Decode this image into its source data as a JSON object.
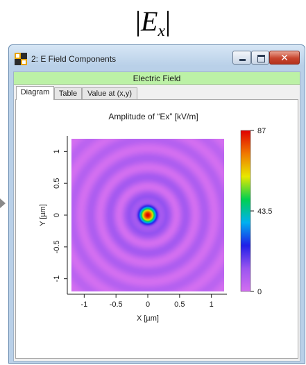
{
  "heading": {
    "symbol": "E",
    "subscript": "x"
  },
  "window": {
    "title": "2: E Field Components",
    "icon": "grid-app-icon",
    "controls": {
      "minimize": "minimize-icon",
      "maximize": "maximize-icon",
      "close": "close-icon"
    }
  },
  "header_band": {
    "label": "Electric Field",
    "color": "#bcf1a6"
  },
  "tabs": [
    {
      "label": "Diagram",
      "active": true
    },
    {
      "label": "Table",
      "active": false
    },
    {
      "label": "Value at (x,y)",
      "active": false
    }
  ],
  "chart_data": {
    "type": "heatmap",
    "title": "Amplitude of “Ex”  [kV/m]",
    "xlabel": "X [µm]",
    "ylabel": "Y [µm]",
    "xlim": [
      -1.2,
      1.2
    ],
    "ylim": [
      -1.2,
      1.2
    ],
    "xticks": [
      -1,
      -0.5,
      0,
      0.5,
      1
    ],
    "xtick_labels": [
      "-1",
      "-0.5",
      "0",
      "0.5",
      "1"
    ],
    "yticks": [
      -1,
      -0.5,
      0,
      0.5,
      1
    ],
    "ytick_labels": [
      "-1",
      "-0.5",
      "0",
      "0.5",
      "1"
    ],
    "colorbar": {
      "min": 0,
      "max": 87,
      "tick_labels": [
        "87",
        "43.5",
        "0"
      ],
      "colormap": [
        "#d36ff0",
        "#9b55f0",
        "#2020e8",
        "#00b0f0",
        "#00d050",
        "#e8e800",
        "#f07800",
        "#e00000"
      ]
    },
    "field": {
      "description_values": "radially symmetric amplitude: peak 87 at center, concentric rings",
      "peak": 87,
      "ring_radii": [
        0,
        0.28,
        0.55,
        0.85,
        1.15
      ]
    },
    "grid": false
  }
}
